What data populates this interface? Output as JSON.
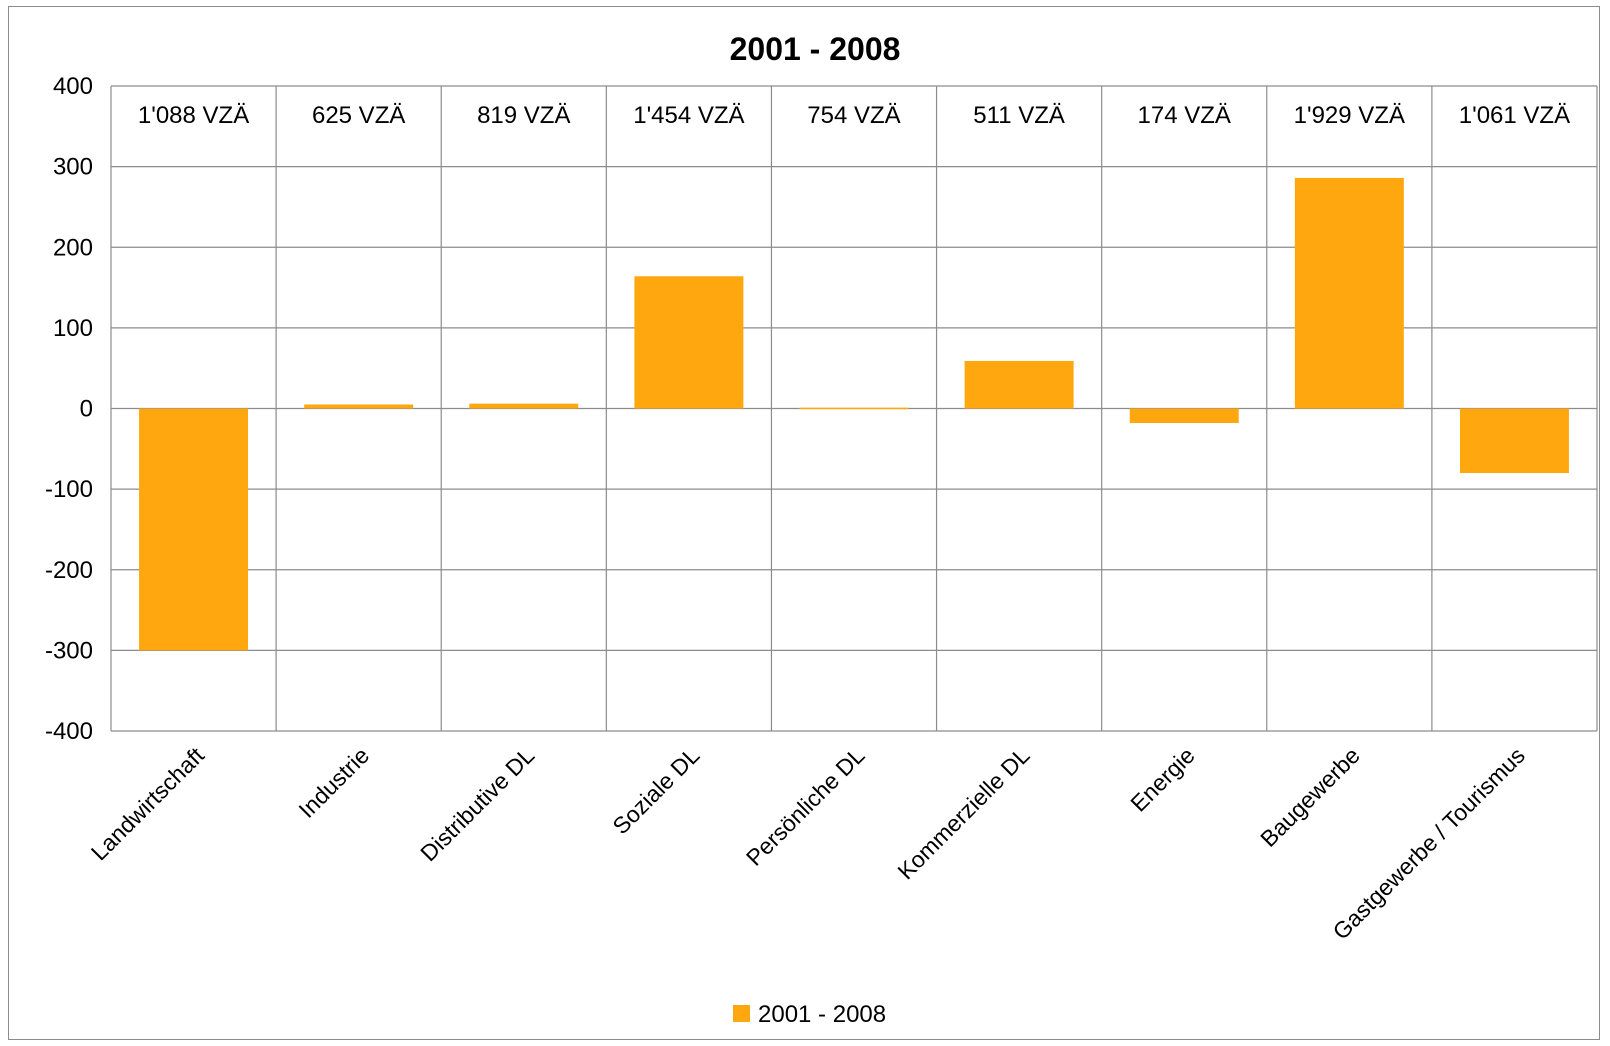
{
  "chart_data": {
    "type": "bar",
    "title": "2001 - 2008",
    "categories": [
      "Landwirtschaft",
      "Industrie",
      "Distributive DL",
      "Soziale DL",
      "Persönliche DL",
      "Kommerzielle DL",
      "Energie",
      "Baugewerbe",
      "Gastgewerbe / Tourismus"
    ],
    "annotations": [
      "1'088 VZÄ",
      "625 VZÄ",
      "819 VZÄ",
      "1'454 VZÄ",
      "754 VZÄ",
      "511 VZÄ",
      "174 VZÄ",
      "1'929 VZÄ",
      "1'061 VZÄ"
    ],
    "series": [
      {
        "name": "2001 - 2008",
        "values": [
          -300,
          5,
          6,
          164,
          1,
          59,
          -18,
          286,
          -80
        ],
        "color": "#FFA70F"
      }
    ],
    "ylim": [
      -400,
      400
    ],
    "yticks": [
      400,
      300,
      200,
      100,
      0,
      -100,
      -200,
      -300,
      -400
    ],
    "grid": true,
    "legend_position": "bottom"
  }
}
